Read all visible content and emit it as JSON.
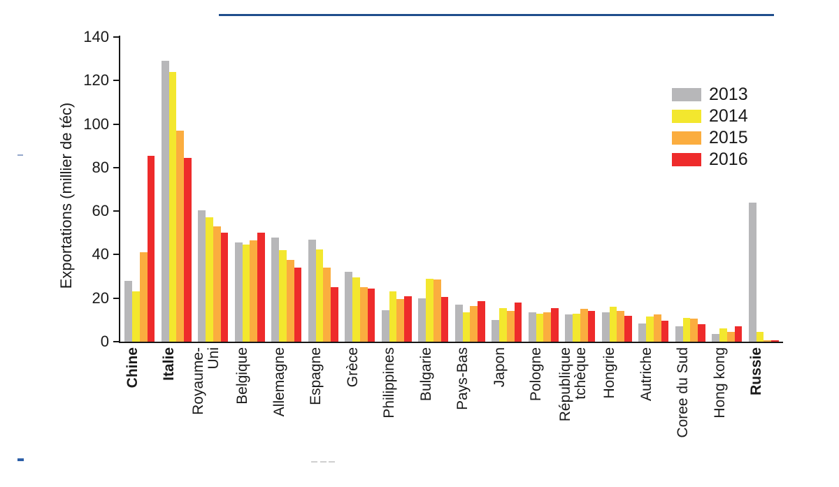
{
  "chart_data": {
    "type": "bar",
    "title": "",
    "xlabel": "",
    "ylabel": "Exportations (millier de téc)",
    "ylim": [
      0,
      140
    ],
    "ytick_step": 20,
    "grid": false,
    "legend_position": "upper-right",
    "categories": [
      "Chine",
      "Italie",
      "Royaume-\nUni",
      "Belgique",
      "Allemagne",
      "Espagne",
      "Grèce",
      "Philippines",
      "Bulgarie",
      "Pays-Bas",
      "Japon",
      "Pologne",
      "République\ntchèque",
      "Hongrie",
      "Autriche",
      "Coree du Sud",
      "Hong kong",
      "Russie"
    ],
    "bold_categories": [
      "Chine",
      "Italie",
      "Russie"
    ],
    "series": [
      {
        "name": "2013",
        "color": "#b7b7b9",
        "values": [
          28,
          129,
          60.5,
          45.5,
          48,
          47,
          32,
          14.5,
          20,
          17,
          10,
          13.5,
          12.5,
          13.5,
          8.5,
          7,
          3.5,
          64
        ]
      },
      {
        "name": "2014",
        "color": "#f3e72e",
        "values": [
          23,
          124,
          57,
          44.5,
          42,
          42.5,
          29.5,
          23,
          29,
          13.5,
          15.5,
          13,
          13,
          16,
          11.5,
          11,
          6,
          4.5
        ]
      },
      {
        "name": "2015",
        "color": "#fbad3f",
        "values": [
          41,
          97,
          53,
          46.5,
          37.5,
          34,
          25,
          19.5,
          28.5,
          16.5,
          14,
          13.5,
          15,
          14,
          12.5,
          10.5,
          4.5,
          0.5
        ]
      },
      {
        "name": "2016",
        "color": "#ee2b2b",
        "values": [
          85.5,
          84.5,
          50,
          50,
          34,
          25,
          24.5,
          21,
          20.5,
          18.5,
          18,
          15.5,
          14,
          12,
          9.5,
          8,
          7,
          0.5
        ]
      }
    ]
  },
  "decorations": {
    "top_rule_color": "#1f4e8c",
    "axis_color": "#161616"
  }
}
